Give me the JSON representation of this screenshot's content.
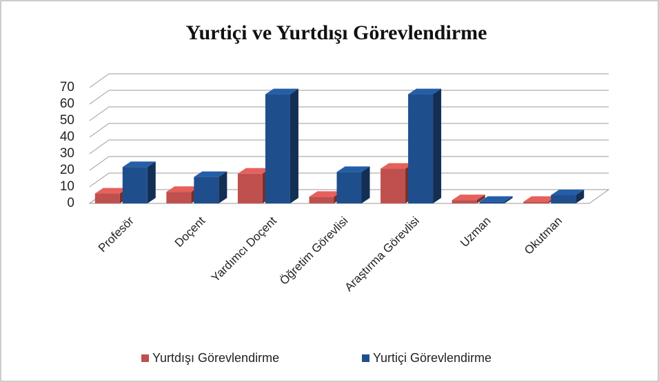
{
  "chart_data": {
    "type": "bar3d",
    "title": "Yurtiçi ve Yurtdışı Görevlendirme",
    "categories": [
      "Profesör",
      "Doçent",
      "Yardımcı Doçent",
      "Öğretim Görevlisi",
      "Araştırma Görevlisi",
      "Uzman",
      "Okutman"
    ],
    "series": [
      {
        "name": "Yurtdışı Görevlendirme",
        "color": "#c0504d",
        "values": [
          6,
          7,
          18,
          4,
          21,
          2,
          1
        ]
      },
      {
        "name": "Yurtiçi Görevlendirme",
        "color": "#1f4e8c",
        "values": [
          22,
          16,
          66,
          19,
          66,
          1,
          5
        ]
      }
    ],
    "ylim": [
      0,
      70
    ],
    "yticks": [
      0,
      10,
      20,
      30,
      40,
      50,
      60,
      70
    ],
    "grid": true,
    "legend": "bottom"
  }
}
